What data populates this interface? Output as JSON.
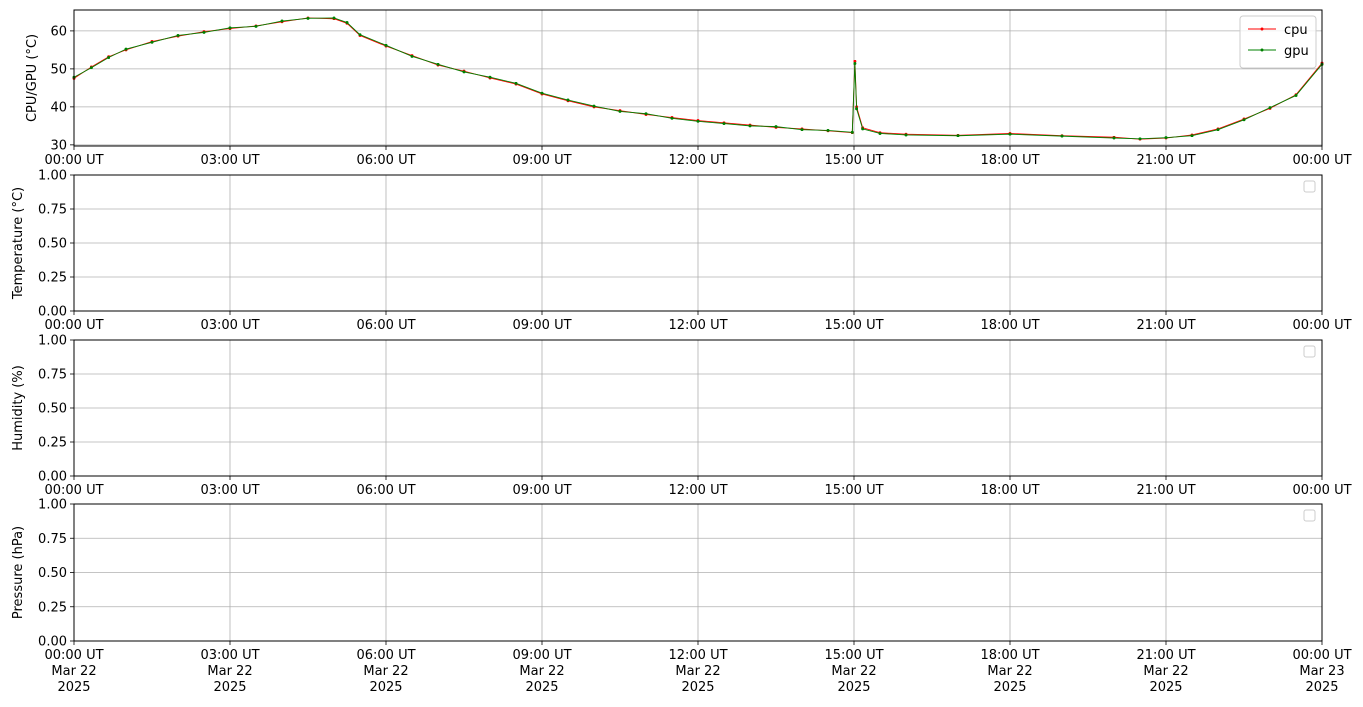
{
  "chart_data": [
    {
      "type": "line",
      "ylabel": "CPU/GPU (°C)",
      "xlim": [
        "2025-03-22 00:00",
        "2025-03-23 00:00"
      ],
      "ylim": [
        29.7,
        65.5
      ],
      "xticks": [
        {
          "value": "2025-03-22 00:00",
          "label": "00:00 UT"
        },
        {
          "value": "2025-03-22 03:00",
          "label": "03:00 UT"
        },
        {
          "value": "2025-03-22 06:00",
          "label": "06:00 UT"
        },
        {
          "value": "2025-03-22 09:00",
          "label": "09:00 UT"
        },
        {
          "value": "2025-03-22 12:00",
          "label": "12:00 UT"
        },
        {
          "value": "2025-03-22 15:00",
          "label": "15:00 UT"
        },
        {
          "value": "2025-03-22 18:00",
          "label": "18:00 UT"
        },
        {
          "value": "2025-03-22 21:00",
          "label": "21:00 UT"
        },
        {
          "value": "2025-03-23 00:00",
          "label": "00:00 UT"
        }
      ],
      "yticks": [
        30,
        40,
        50,
        60
      ],
      "grid": true,
      "legend": "upper right",
      "x": [
        "2025-03-22 00:00",
        "2025-03-22 00:20",
        "2025-03-22 00:40",
        "2025-03-22 01:00",
        "2025-03-22 01:30",
        "2025-03-22 02:00",
        "2025-03-22 02:30",
        "2025-03-22 03:00",
        "2025-03-22 03:30",
        "2025-03-22 04:00",
        "2025-03-22 04:30",
        "2025-03-22 05:00",
        "2025-03-22 05:15",
        "2025-03-22 05:30",
        "2025-03-22 06:00",
        "2025-03-22 06:30",
        "2025-03-22 07:00",
        "2025-03-22 07:30",
        "2025-03-22 08:00",
        "2025-03-22 08:30",
        "2025-03-22 09:00",
        "2025-03-22 09:30",
        "2025-03-22 10:00",
        "2025-03-22 10:30",
        "2025-03-22 11:00",
        "2025-03-22 11:30",
        "2025-03-22 12:00",
        "2025-03-22 12:30",
        "2025-03-22 13:00",
        "2025-03-22 13:30",
        "2025-03-22 14:00",
        "2025-03-22 14:30",
        "2025-03-22 14:58",
        "2025-03-22 15:01",
        "2025-03-22 15:03",
        "2025-03-22 15:10",
        "2025-03-22 15:30",
        "2025-03-22 16:00",
        "2025-03-22 17:00",
        "2025-03-22 18:00",
        "2025-03-22 19:00",
        "2025-03-22 20:00",
        "2025-03-22 20:30",
        "2025-03-22 21:00",
        "2025-03-22 21:30",
        "2025-03-22 22:00",
        "2025-03-22 22:30",
        "2025-03-22 23:00",
        "2025-03-22 23:30",
        "2025-03-23 00:00"
      ],
      "series": [
        {
          "name": "cpu",
          "color": "#ff0000",
          "values": [
            47.5,
            50.5,
            53.2,
            55.0,
            57.2,
            58.6,
            59.8,
            60.6,
            61.3,
            62.4,
            63.4,
            63.2,
            62.0,
            58.8,
            56.0,
            53.5,
            51.0,
            49.4,
            47.6,
            46.0,
            43.4,
            41.6,
            40.0,
            39.0,
            38.0,
            37.2,
            36.4,
            35.8,
            35.2,
            34.6,
            34.2,
            33.7,
            33.2,
            52.0,
            40.0,
            34.5,
            33.2,
            32.8,
            32.5,
            33.0,
            32.4,
            32.0,
            31.5,
            31.8,
            32.6,
            34.2,
            36.8,
            39.6,
            43.2,
            51.5
          ]
        },
        {
          "name": "gpu",
          "color": "#008000",
          "values": [
            47.8,
            50.3,
            53.0,
            55.2,
            57.0,
            58.8,
            59.6,
            60.8,
            61.2,
            62.6,
            63.3,
            63.4,
            62.2,
            59.0,
            56.2,
            53.3,
            51.2,
            49.2,
            47.8,
            46.2,
            43.6,
            41.8,
            40.2,
            38.8,
            38.2,
            37.0,
            36.2,
            35.6,
            35.0,
            34.8,
            34.0,
            33.8,
            33.3,
            51.4,
            39.5,
            34.2,
            33.0,
            32.6,
            32.4,
            32.8,
            32.3,
            31.8,
            31.6,
            31.9,
            32.4,
            34.0,
            36.6,
            39.8,
            43.0,
            51.2
          ]
        }
      ]
    },
    {
      "type": "line",
      "ylabel": "Temperature (°C)",
      "xlim": [
        "2025-03-22 00:00",
        "2025-03-23 00:00"
      ],
      "ylim": [
        0,
        1
      ],
      "xticks": [
        {
          "value": "2025-03-22 00:00",
          "label": "00:00 UT"
        },
        {
          "value": "2025-03-22 03:00",
          "label": "03:00 UT"
        },
        {
          "value": "2025-03-22 06:00",
          "label": "06:00 UT"
        },
        {
          "value": "2025-03-22 09:00",
          "label": "09:00 UT"
        },
        {
          "value": "2025-03-22 12:00",
          "label": "12:00 UT"
        },
        {
          "value": "2025-03-22 15:00",
          "label": "15:00 UT"
        },
        {
          "value": "2025-03-22 18:00",
          "label": "18:00 UT"
        },
        {
          "value": "2025-03-22 21:00",
          "label": "21:00 UT"
        },
        {
          "value": "2025-03-23 00:00",
          "label": "00:00 UT"
        }
      ],
      "yticks": [
        {
          "value": 0,
          "label": "0.00"
        },
        {
          "value": 0.25,
          "label": "0.25"
        },
        {
          "value": 0.5,
          "label": "0.50"
        },
        {
          "value": 0.75,
          "label": "0.75"
        },
        {
          "value": 1,
          "label": "1.00"
        }
      ],
      "grid": true,
      "legend": "upper right",
      "series": []
    },
    {
      "type": "line",
      "ylabel": "Humidity (%)",
      "xlim": [
        "2025-03-22 00:00",
        "2025-03-23 00:00"
      ],
      "ylim": [
        0,
        1
      ],
      "xticks": [
        {
          "value": "2025-03-22 00:00",
          "label": "00:00 UT"
        },
        {
          "value": "2025-03-22 03:00",
          "label": "03:00 UT"
        },
        {
          "value": "2025-03-22 06:00",
          "label": "06:00 UT"
        },
        {
          "value": "2025-03-22 09:00",
          "label": "09:00 UT"
        },
        {
          "value": "2025-03-22 12:00",
          "label": "12:00 UT"
        },
        {
          "value": "2025-03-22 15:00",
          "label": "15:00 UT"
        },
        {
          "value": "2025-03-22 18:00",
          "label": "18:00 UT"
        },
        {
          "value": "2025-03-22 21:00",
          "label": "21:00 UT"
        },
        {
          "value": "2025-03-23 00:00",
          "label": "00:00 UT"
        }
      ],
      "yticks": [
        {
          "value": 0,
          "label": "0.00"
        },
        {
          "value": 0.25,
          "label": "0.25"
        },
        {
          "value": 0.5,
          "label": "0.50"
        },
        {
          "value": 0.75,
          "label": "0.75"
        },
        {
          "value": 1,
          "label": "1.00"
        }
      ],
      "grid": true,
      "legend": "upper right",
      "series": []
    },
    {
      "type": "line",
      "ylabel": "Pressure (hPa)",
      "xlim": [
        "2025-03-22 00:00",
        "2025-03-23 00:00"
      ],
      "ylim": [
        0,
        1
      ],
      "xticks": [
        {
          "value": "2025-03-22 00:00",
          "label": "00:00 UT\nMar 22\n2025"
        },
        {
          "value": "2025-03-22 03:00",
          "label": "03:00 UT\nMar 22\n2025"
        },
        {
          "value": "2025-03-22 06:00",
          "label": "06:00 UT\nMar 22\n2025"
        },
        {
          "value": "2025-03-22 09:00",
          "label": "09:00 UT\nMar 22\n2025"
        },
        {
          "value": "2025-03-22 12:00",
          "label": "12:00 UT\nMar 22\n2025"
        },
        {
          "value": "2025-03-22 15:00",
          "label": "15:00 UT\nMar 22\n2025"
        },
        {
          "value": "2025-03-22 18:00",
          "label": "18:00 UT\nMar 22\n2025"
        },
        {
          "value": "2025-03-22 21:00",
          "label": "21:00 UT\nMar 22\n2025"
        },
        {
          "value": "2025-03-23 00:00",
          "label": "00:00 UT\nMar 23\n2025"
        }
      ],
      "yticks": [
        {
          "value": 0,
          "label": "0.00"
        },
        {
          "value": 0.25,
          "label": "0.25"
        },
        {
          "value": 0.5,
          "label": "0.50"
        },
        {
          "value": 0.75,
          "label": "0.75"
        },
        {
          "value": 1,
          "label": "1.00"
        }
      ],
      "grid": true,
      "legend": "upper right",
      "series": []
    }
  ]
}
